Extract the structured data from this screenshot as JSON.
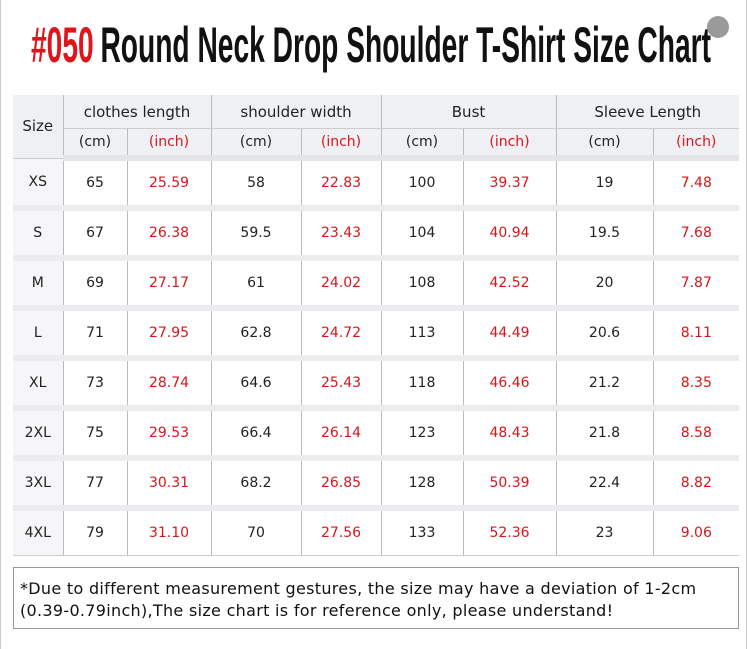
{
  "header": {
    "code": "#050",
    "title": "Round Neck Drop Shoulder T-Shirt Size Chart"
  },
  "table": {
    "size_label": "Size",
    "groups": [
      "clothes length",
      "shoulder width",
      "Bust",
      "Sleeve Length"
    ],
    "units": [
      "(cm)",
      "(inch)",
      "(cm)",
      "(inch)",
      "(cm)",
      "(inch)",
      "(cm)",
      "(inch)"
    ],
    "rows": [
      [
        "XS",
        "65",
        "25.59",
        "58",
        "22.83",
        "100",
        "39.37",
        "19",
        "7.48"
      ],
      [
        "S",
        "67",
        "26.38",
        "59.5",
        "23.43",
        "104",
        "40.94",
        "19.5",
        "7.68"
      ],
      [
        "M",
        "69",
        "27.17",
        "61",
        "24.02",
        "108",
        "42.52",
        "20",
        "7.87"
      ],
      [
        "L",
        "71",
        "27.95",
        "62.8",
        "24.72",
        "113",
        "44.49",
        "20.6",
        "8.11"
      ],
      [
        "XL",
        "73",
        "28.74",
        "64.6",
        "25.43",
        "118",
        "46.46",
        "21.2",
        "8.35"
      ],
      [
        "2XL",
        "75",
        "29.53",
        "66.4",
        "26.14",
        "123",
        "48.43",
        "21.8",
        "8.58"
      ],
      [
        "3XL",
        "77",
        "30.31",
        "68.2",
        "26.85",
        "128",
        "50.39",
        "22.4",
        "8.82"
      ],
      [
        "4XL",
        "79",
        "31.10",
        "70",
        "27.56",
        "133",
        "52.36",
        "23",
        "9.06"
      ]
    ]
  },
  "footnote": [
    "*Due to different measurement gestures, the size may have a deviation of 1-2cm",
    "(0.39-0.79inch),The size chart is for reference only, please understand!"
  ]
}
